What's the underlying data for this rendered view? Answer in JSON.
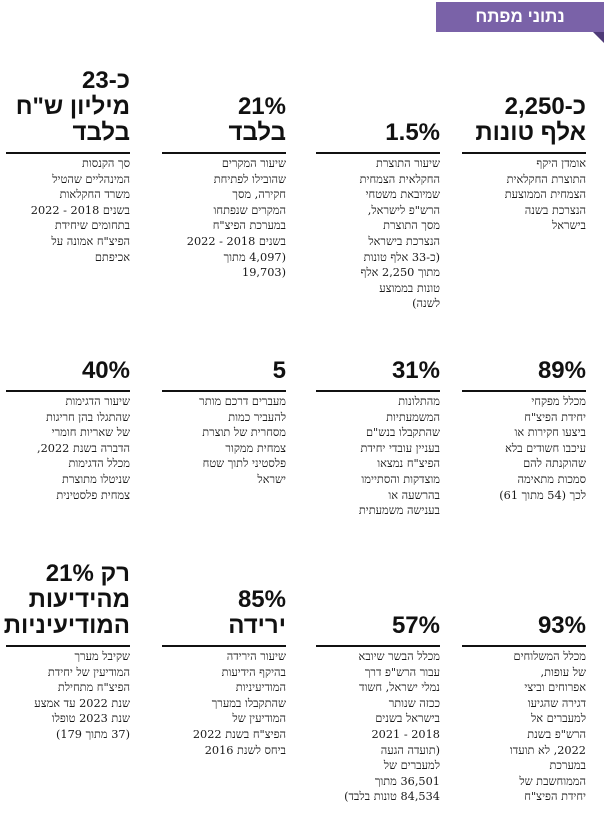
{
  "header": {
    "title": "נתוני מפתח"
  },
  "stats": [
    {
      "value_lines": [
        "כ-2,250",
        "אלף טונות"
      ],
      "desc_lines": [
        "אומדן היקף",
        "התוצרת החקלאית",
        "הצמחית הממוצעת",
        "הנצרכת בשנה",
        "בישראל"
      ]
    },
    {
      "value_lines": [
        "1.5%"
      ],
      "desc_lines": [
        "שיעור התוצרת",
        "החקלאית הצמחית",
        "שמיובאת משטחי",
        "הרש\"פ לישראל,",
        "מסך התוצרת",
        "הנצרכת בישראל",
        "(כ-33 אלף טונות",
        "מתוך 2,250 אלף",
        "טונות בממוצע",
        "לשנה)"
      ]
    },
    {
      "value_lines": [
        "21%",
        "בלבד"
      ],
      "desc_lines": [
        "שיעור המקרים",
        "שהובילו לפתיחת",
        "חקירה, מסך",
        "המקרים שנפתחו",
        "במערכת הפיצ\"ח",
        "בשנים 2018 - 2022",
        "(4,097 מתוך",
        "(19,703"
      ]
    },
    {
      "value_lines": [
        "כ-23",
        "מיליון ש\"ח",
        "בלבד"
      ],
      "desc_lines": [
        "סך הקנסות",
        "המינהליים שהטיל",
        "משרד החקלאות",
        "בשנים 2018 - 2022",
        "בתחומים שיחידת",
        "הפיצ\"ח אמונה על",
        "אכיפתם"
      ]
    },
    {
      "value_lines": [
        "89%"
      ],
      "desc_lines": [
        "מכלל מפקחי",
        "יחידת הפיצ\"ח",
        "ביצעו חקירות או",
        "עיכבו חשודים בלא",
        "שהוקנתה להם",
        "סמכות מתאימה",
        "לכך (54 מתוך 61)"
      ]
    },
    {
      "value_lines": [
        "31%"
      ],
      "desc_lines": [
        "מהתלונות",
        "המשמעתיות",
        "שהתקבלו בנש\"ם",
        "בעניין עובדי יחידת",
        "הפיצ\"ח נמצאו",
        "מוצדקות והסתיימו",
        "בהרשעה או",
        "בענישה משמעתית"
      ]
    },
    {
      "value_lines": [
        "5"
      ],
      "desc_lines": [
        "מעברים דרכם מותר",
        "להעביר כמות",
        "מסחרית של תוצרת",
        "צמחית ממקור",
        "פלסטיני לתוך שטח",
        "ישראל"
      ]
    },
    {
      "value_lines": [
        "40%"
      ],
      "desc_lines": [
        "שיעור הדגימות",
        "שהתגלו בהן חריגות",
        "של שאריות חומרי",
        "הדברה בשנת 2022,",
        "מכלל הדגימות",
        "שניטלו מתוצרת",
        "צמחית פלסטינית"
      ]
    },
    {
      "value_lines": [
        "93%"
      ],
      "desc_lines": [
        "מכלל המשלוחים",
        "של עופות,",
        "אפרוחים וביצי",
        "דגירה שהגיעו",
        "למעברים אל",
        "הרש\"פ בשנת",
        "2022, לא תועדו",
        "במערכת",
        "הממוחשבת של",
        "יחידת הפיצ\"ח"
      ]
    },
    {
      "value_lines": [
        "57%"
      ],
      "desc_lines": [
        "מכלל הבשר שיובא",
        "עבור הרש\"פ דרך",
        "נמלי ישראל, חשוד",
        "ככזה שנותר",
        "בישראל בשנים",
        "2018 - 2021",
        "(תועדה הגעה",
        "למעברים של",
        "36,501 מתוך",
        "84,534 טונות בלבד)"
      ]
    },
    {
      "value_lines": [
        "85%",
        "ירידה"
      ],
      "desc_lines": [
        "שיעור הירידה",
        "בהיקף הידיעות",
        "המודיעיניות",
        "שהתקבלו במערך",
        "המודיעין של",
        "הפיצ\"ח בשנת 2022",
        "ביחס לשנת 2016"
      ]
    },
    {
      "value_lines": [
        "רק 21%",
        "מהידיעות",
        "המודיעיניות"
      ],
      "desc_lines": [
        "שקיבל מערך",
        "המודיעין של יחידת",
        "הפיצ\"ח מתחילת",
        "שנת 2022 עד אמצע",
        "שנת 2023 טופלו",
        "(37 מתוך 179)"
      ]
    }
  ]
}
